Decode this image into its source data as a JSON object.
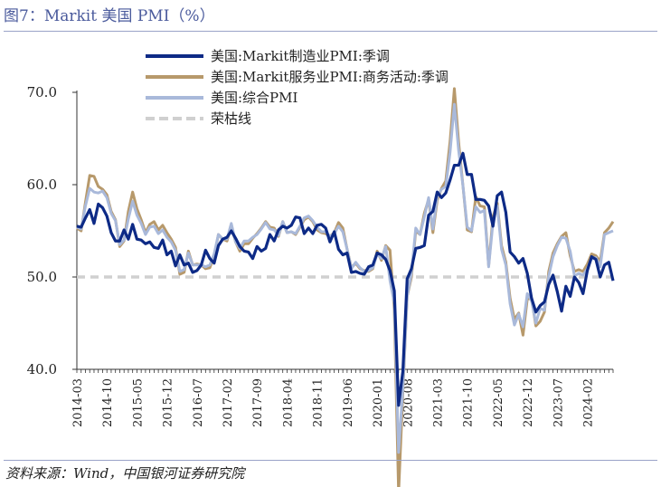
{
  "header": {
    "title": "图7：Markit 美国 PMI（%）"
  },
  "footer": {
    "source": "资料来源：Wind，中国银河证券研究院"
  },
  "colors": {
    "manufacturing": "#0d2a86",
    "services": "#b7996b",
    "composite": "#a9b9da",
    "boom_bust": "#d0d0d0"
  },
  "chart_data": {
    "type": "line",
    "title": "Markit 美国 PMI（%）",
    "xlabel": "",
    "ylabel": "",
    "ylim": [
      40,
      70
    ],
    "yticks": [
      "40.0",
      "50.0",
      "60.0",
      "70.0"
    ],
    "xticks": [
      "2014-03",
      "2014-10",
      "2015-05",
      "2015-12",
      "2016-07",
      "2017-02",
      "2017-09",
      "2018-04",
      "2018-11",
      "2019-06",
      "2020-01",
      "2020-08",
      "2021-03",
      "2021-10",
      "2022-05",
      "2022-12",
      "2023-07",
      "2024-02"
    ],
    "x_start": "2014-03",
    "legend": [
      "美国:Markit制造业PMI:季调",
      "美国:Markit服务业PMI:商务活动:季调",
      "美国:综合PMI",
      "荣枯线"
    ],
    "series": [
      {
        "name": "美国:Markit制造业PMI:季调",
        "values": [
          55.5,
          55.4,
          56.4,
          57.3,
          55.8,
          57.9,
          57.5,
          56.6,
          54.8,
          53.9,
          53.9,
          55.1,
          54.1,
          55.7,
          54.1,
          54.0,
          53.6,
          53.8,
          53.2,
          53.1,
          54.0,
          52.4,
          52.8,
          51.2,
          52.4,
          51.3,
          51.5,
          50.5,
          50.7,
          51.3,
          52.9,
          52.0,
          51.5,
          53.4,
          54.1,
          54.3,
          55.0,
          54.2,
          53.3,
          52.8,
          52.7,
          52.0,
          53.3,
          52.8,
          53.1,
          54.6,
          53.9,
          55.1,
          55.5,
          55.3,
          55.6,
          56.5,
          56.4,
          54.7,
          55.3,
          54.7,
          55.6,
          55.7,
          55.3,
          53.8,
          54.9,
          53.0,
          52.4,
          52.6,
          50.5,
          50.6,
          50.4,
          50.3,
          51.1,
          51.3,
          52.6,
          52.4,
          51.9,
          50.7,
          48.5,
          36.1,
          39.8,
          49.8,
          50.9,
          53.1,
          53.2,
          53.4,
          56.7,
          57.1,
          59.2,
          58.6,
          59.1,
          60.5,
          62.1,
          62.1,
          63.4,
          61.1,
          61.1,
          58.4,
          58.4,
          58.3,
          57.7,
          55.5,
          58.8,
          59.2,
          57.0,
          52.7,
          52.2,
          51.5,
          52.0,
          50.4,
          47.7,
          46.2,
          46.9,
          47.3,
          49.2,
          50.2,
          48.4,
          46.3,
          49.0,
          47.9,
          50.0,
          49.4,
          48.2,
          50.7,
          52.2,
          51.9,
          50.0,
          51.3,
          51.6,
          49.6
        ]
      },
      {
        "name": "美国:Markit服务业PMI:商务活动:季调",
        "values": [
          55.3,
          55.0,
          58.1,
          61.0,
          60.9,
          59.8,
          59.5,
          58.9,
          57.1,
          56.2,
          53.3,
          53.9,
          57.1,
          59.2,
          57.4,
          56.2,
          54.8,
          55.7,
          56.0,
          55.1,
          55.6,
          54.8,
          54.1,
          53.2,
          50.3,
          50.5,
          52.8,
          51.3,
          51.4,
          51.3,
          50.9,
          51.0,
          52.3,
          54.6,
          54.1,
          53.9,
          55.6,
          53.8,
          52.8,
          53.6,
          53.6,
          54.2,
          54.7,
          55.3,
          56.0,
          55.4,
          55.3,
          54.4,
          56.0,
          54.8,
          54.9,
          54.6,
          55.4,
          56.2,
          56.5,
          56.0,
          55.1,
          54.8,
          54.7,
          54.4,
          54.8,
          55.9,
          55.3,
          53.0,
          51.0,
          51.5,
          50.9,
          50.7,
          50.6,
          50.9,
          52.8,
          51.8,
          53.4,
          52.9,
          46.4,
          26.6,
          37.5,
          47.9,
          50.0,
          55.0,
          54.6,
          56.9,
          58.4,
          54.8,
          58.3,
          59.6,
          60.4,
          64.7,
          70.4,
          64.6,
          59.9,
          55.1,
          54.9,
          58.7,
          57.7,
          57.6,
          51.2,
          56.5,
          58.0,
          53.4,
          51.6,
          47.7,
          45.4,
          46.1,
          43.7,
          47.6,
          47.7,
          44.7,
          45.2,
          46.2,
          50.6,
          52.6,
          53.6,
          54.4,
          54.8,
          52.3,
          50.6,
          50.8,
          50.6,
          51.4,
          52.5,
          52.3,
          51.7,
          54.8,
          55.3,
          56.0
        ]
      },
      {
        "name": "美国:综合PMI",
        "values": [
          55.4,
          55.2,
          57.7,
          59.6,
          59.2,
          59.1,
          59.3,
          58.6,
          56.9,
          56.1,
          53.5,
          54.0,
          56.3,
          58.2,
          56.7,
          55.8,
          54.6,
          55.4,
          55.5,
          54.7,
          55.1,
          54.3,
          53.8,
          52.9,
          50.6,
          50.8,
          52.6,
          51.3,
          51.3,
          51.3,
          51.1,
          51.3,
          52.5,
          54.6,
          54.1,
          54.1,
          55.8,
          53.8,
          53.1,
          53.9,
          53.9,
          54.3,
          54.6,
          55.2,
          55.9,
          55.2,
          55.1,
          54.5,
          56.0,
          54.8,
          54.9,
          54.7,
          55.5,
          56.4,
          56.6,
          56.1,
          55.4,
          54.9,
          54.9,
          54.4,
          54.7,
          55.5,
          54.9,
          53.0,
          50.9,
          51.6,
          51.0,
          50.6,
          50.7,
          51.0,
          52.5,
          52.0,
          53.3,
          49.6,
          47.2,
          31.0,
          38.0,
          47.9,
          50.4,
          55.3,
          54.6,
          56.5,
          58.6,
          55.2,
          58.7,
          59.5,
          59.8,
          63.5,
          68.7,
          63.7,
          59.9,
          55.4,
          55.0,
          57.6,
          57.0,
          57.2,
          51.1,
          55.9,
          57.7,
          53.0,
          51.3,
          47.1,
          44.8,
          46.0,
          44.6,
          48.2,
          47.4,
          45.0,
          46.6,
          46.4,
          50.1,
          52.2,
          53.4,
          54.3,
          54.2,
          52.8,
          50.1,
          50.4,
          50.2,
          50.9,
          52.0,
          52.1,
          51.1,
          54.6,
          54.8,
          55.0
        ]
      }
    ],
    "boom_bust_line": 50
  }
}
